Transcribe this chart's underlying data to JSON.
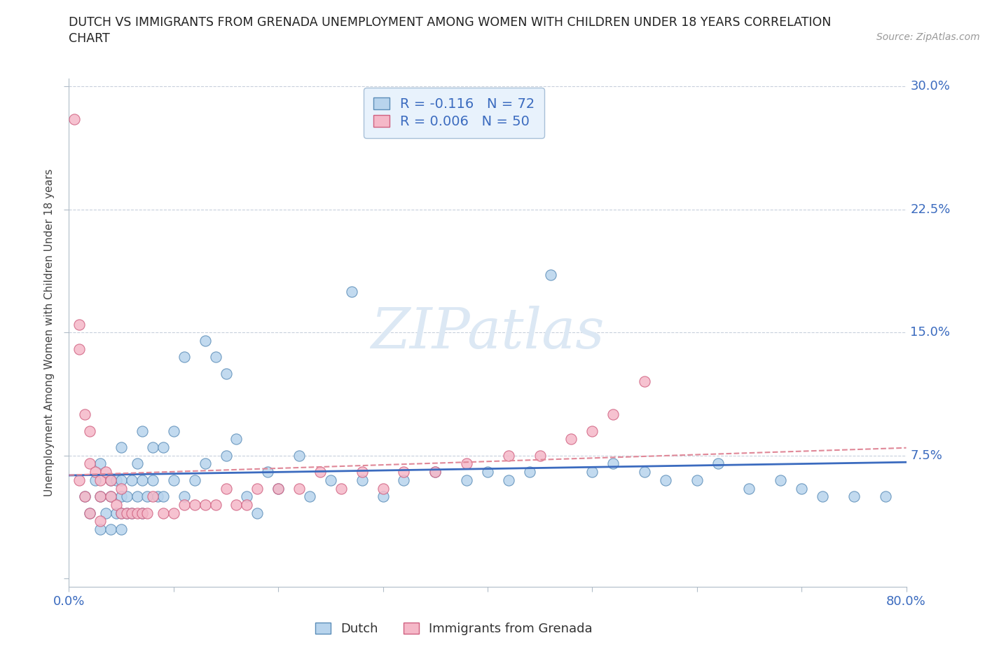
{
  "title_line1": "DUTCH VS IMMIGRANTS FROM GRENADA UNEMPLOYMENT AMONG WOMEN WITH CHILDREN UNDER 18 YEARS CORRELATION",
  "title_line2": "CHART",
  "source": "Source: ZipAtlas.com",
  "ylabel": "Unemployment Among Women with Children Under 18 years",
  "xlim": [
    0.0,
    0.8
  ],
  "ylim": [
    -0.005,
    0.305
  ],
  "ytick_vals": [
    0.0,
    0.075,
    0.15,
    0.225,
    0.3
  ],
  "ytick_labels": [
    "",
    "7.5%",
    "15.0%",
    "22.5%",
    "30.0%"
  ],
  "xtick_vals": [
    0.0,
    0.1,
    0.2,
    0.3,
    0.4,
    0.5,
    0.6,
    0.7,
    0.8
  ],
  "xtick_labels": [
    "0.0%",
    "",
    "",
    "",
    "",
    "",
    "",
    "",
    "80.0%"
  ],
  "dutch_R": -0.116,
  "dutch_N": 72,
  "grenada_R": 0.006,
  "grenada_N": 50,
  "dutch_color": "#b8d4ed",
  "dutch_edge": "#5b8db8",
  "grenada_color": "#f5b8c8",
  "grenada_edge": "#d06080",
  "trend_dutch_color": "#3b6bbf",
  "trend_grenada_color": "#e08898",
  "legend_bg": "#e8f2fc",
  "legend_edge": "#a8c0d8",
  "watermark_color": "#dce8f4",
  "dutch_x": [
    0.015,
    0.02,
    0.025,
    0.03,
    0.03,
    0.03,
    0.035,
    0.04,
    0.04,
    0.04,
    0.045,
    0.045,
    0.05,
    0.05,
    0.05,
    0.05,
    0.05,
    0.055,
    0.055,
    0.06,
    0.06,
    0.065,
    0.065,
    0.07,
    0.07,
    0.07,
    0.075,
    0.08,
    0.08,
    0.085,
    0.09,
    0.09,
    0.1,
    0.1,
    0.11,
    0.11,
    0.12,
    0.13,
    0.13,
    0.14,
    0.15,
    0.15,
    0.16,
    0.17,
    0.18,
    0.19,
    0.2,
    0.22,
    0.23,
    0.25,
    0.27,
    0.28,
    0.3,
    0.32,
    0.35,
    0.38,
    0.4,
    0.42,
    0.44,
    0.46,
    0.5,
    0.52,
    0.55,
    0.57,
    0.6,
    0.62,
    0.65,
    0.68,
    0.7,
    0.72,
    0.75,
    0.78
  ],
  "dutch_y": [
    0.05,
    0.04,
    0.06,
    0.03,
    0.05,
    0.07,
    0.04,
    0.03,
    0.05,
    0.06,
    0.04,
    0.06,
    0.03,
    0.04,
    0.05,
    0.06,
    0.08,
    0.04,
    0.05,
    0.04,
    0.06,
    0.05,
    0.07,
    0.04,
    0.06,
    0.09,
    0.05,
    0.06,
    0.08,
    0.05,
    0.05,
    0.08,
    0.06,
    0.09,
    0.05,
    0.135,
    0.06,
    0.145,
    0.07,
    0.135,
    0.075,
    0.125,
    0.085,
    0.05,
    0.04,
    0.065,
    0.055,
    0.075,
    0.05,
    0.06,
    0.175,
    0.06,
    0.05,
    0.06,
    0.065,
    0.06,
    0.065,
    0.06,
    0.065,
    0.185,
    0.065,
    0.07,
    0.065,
    0.06,
    0.06,
    0.07,
    0.055,
    0.06,
    0.055,
    0.05,
    0.05,
    0.05
  ],
  "grenada_x": [
    0.005,
    0.01,
    0.01,
    0.015,
    0.02,
    0.02,
    0.025,
    0.03,
    0.03,
    0.035,
    0.04,
    0.04,
    0.045,
    0.05,
    0.05,
    0.055,
    0.06,
    0.065,
    0.07,
    0.075,
    0.08,
    0.09,
    0.1,
    0.11,
    0.12,
    0.13,
    0.14,
    0.15,
    0.16,
    0.17,
    0.18,
    0.2,
    0.22,
    0.24,
    0.26,
    0.28,
    0.3,
    0.32,
    0.35,
    0.38,
    0.42,
    0.45,
    0.48,
    0.5,
    0.52,
    0.55,
    0.01,
    0.015,
    0.02,
    0.03
  ],
  "grenada_y": [
    0.28,
    0.155,
    0.14,
    0.1,
    0.09,
    0.07,
    0.065,
    0.06,
    0.05,
    0.065,
    0.06,
    0.05,
    0.045,
    0.055,
    0.04,
    0.04,
    0.04,
    0.04,
    0.04,
    0.04,
    0.05,
    0.04,
    0.04,
    0.045,
    0.045,
    0.045,
    0.045,
    0.055,
    0.045,
    0.045,
    0.055,
    0.055,
    0.055,
    0.065,
    0.055,
    0.065,
    0.055,
    0.065,
    0.065,
    0.07,
    0.075,
    0.075,
    0.085,
    0.09,
    0.1,
    0.12,
    0.06,
    0.05,
    0.04,
    0.035
  ]
}
